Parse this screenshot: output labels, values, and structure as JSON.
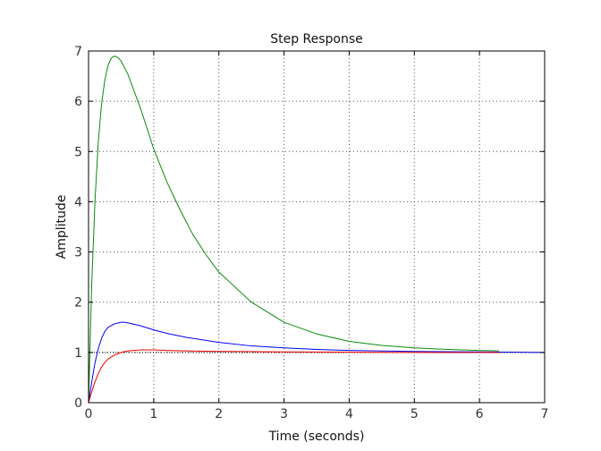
{
  "chart_data": {
    "type": "line",
    "title": "Step Response",
    "xlabel": "Time (seconds)",
    "ylabel": "Amplitude",
    "xlim": [
      0,
      7
    ],
    "ylim": [
      0,
      7
    ],
    "xticks": [
      "0",
      "1",
      "2",
      "3",
      "4",
      "5",
      "6",
      "7"
    ],
    "yticks": [
      "0",
      "1",
      "2",
      "3",
      "4",
      "5",
      "6",
      "7"
    ],
    "grid": true,
    "reference_line": {
      "y": 1,
      "style": "dotted",
      "color": "#000000"
    },
    "series": [
      {
        "color": "#0a8a0a",
        "x": [
          0,
          0.05,
          0.1,
          0.15,
          0.2,
          0.25,
          0.3,
          0.35,
          0.4,
          0.45,
          0.5,
          0.6,
          0.7,
          0.8,
          0.9,
          1.0,
          1.2,
          1.4,
          1.6,
          1.8,
          2.0,
          2.5,
          3.0,
          3.5,
          4.0,
          4.5,
          5.0,
          5.5,
          6.0,
          6.3
        ],
        "y": [
          0,
          2.4,
          4.05,
          5.2,
          5.95,
          6.42,
          6.72,
          6.86,
          6.9,
          6.87,
          6.8,
          6.55,
          6.2,
          5.85,
          5.45,
          5.05,
          4.4,
          3.85,
          3.35,
          2.95,
          2.6,
          2.0,
          1.6,
          1.37,
          1.22,
          1.14,
          1.09,
          1.06,
          1.04,
          1.03
        ]
      },
      {
        "color": "#0000ee",
        "x": [
          0,
          0.05,
          0.1,
          0.15,
          0.2,
          0.25,
          0.3,
          0.4,
          0.5,
          0.55,
          0.6,
          0.7,
          0.8,
          1.0,
          1.2,
          1.5,
          2.0,
          2.5,
          3.0,
          3.5,
          4.0,
          5.0,
          6.0,
          7.0
        ],
        "y": [
          0,
          0.42,
          0.8,
          1.08,
          1.28,
          1.42,
          1.5,
          1.57,
          1.6,
          1.6,
          1.59,
          1.56,
          1.53,
          1.45,
          1.38,
          1.3,
          1.2,
          1.13,
          1.09,
          1.06,
          1.04,
          1.02,
          1.01,
          1.0
        ]
      },
      {
        "color": "#ee0000",
        "x": [
          0,
          0.05,
          0.1,
          0.15,
          0.2,
          0.25,
          0.3,
          0.4,
          0.5,
          0.6,
          0.7,
          0.8,
          1.0,
          1.2,
          1.5,
          2.0,
          3.0,
          4.0,
          5.0,
          6.0,
          6.3
        ],
        "y": [
          0,
          0.22,
          0.42,
          0.58,
          0.71,
          0.8,
          0.87,
          0.95,
          1.0,
          1.03,
          1.04,
          1.05,
          1.05,
          1.04,
          1.03,
          1.02,
          1.01,
          1.005,
          1.0,
          1.0,
          1.0
        ]
      }
    ]
  }
}
